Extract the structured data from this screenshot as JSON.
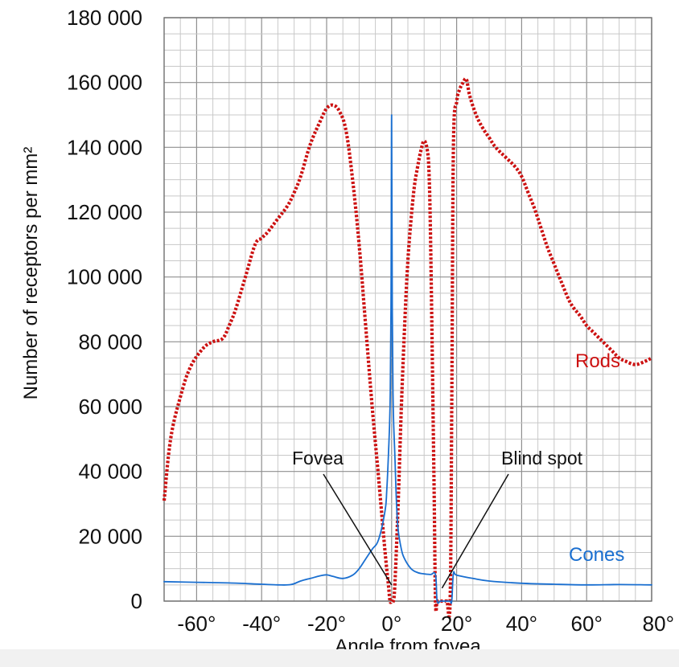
{
  "chart_data": {
    "type": "line",
    "xlabel": "Angle from fovea",
    "ylabel": "Number of receptors per mm²",
    "xlim": [
      -70,
      80
    ],
    "ylim": [
      0,
      180000
    ],
    "x_ticks": [
      -60,
      -40,
      -20,
      0,
      20,
      40,
      60,
      80
    ],
    "x_tick_labels": [
      "-60°",
      "-40°",
      "-20°",
      "0°",
      "20°",
      "40°",
      "60°",
      "80°"
    ],
    "y_ticks": [
      0,
      20000,
      40000,
      60000,
      80000,
      100000,
      120000,
      140000,
      160000,
      180000
    ],
    "y_tick_labels": [
      "0",
      "20 000",
      "40 000",
      "60 000",
      "80 000",
      "100 000",
      "120 000",
      "140 000",
      "160 000",
      "180 000"
    ],
    "grid": true,
    "series": [
      {
        "name": "Rods",
        "color": "#cc1111",
        "style": "dotted",
        "x": [
          -70,
          -68,
          -65,
          -62,
          -58,
          -55,
          -52,
          -50,
          -48,
          -45,
          -42,
          -40,
          -38,
          -35,
          -32,
          -30,
          -28,
          -25,
          -22,
          -20,
          -18,
          -16,
          -14,
          -12,
          -10,
          -8,
          -6,
          -4,
          -2,
          -1,
          -0.5,
          0,
          0.5,
          1,
          2,
          3,
          4,
          5,
          6,
          7,
          8,
          9,
          10,
          11,
          11.5,
          12,
          13,
          13.5,
          14,
          15,
          16,
          17,
          18,
          18.5,
          19,
          20,
          21,
          22,
          23,
          24,
          26,
          28,
          30,
          32,
          35,
          38,
          40,
          42,
          44,
          46,
          48,
          50,
          52,
          55,
          58,
          60,
          62,
          65,
          68,
          70,
          72,
          75,
          78,
          80
        ],
        "y": [
          31000,
          50000,
          63000,
          72000,
          78000,
          80000,
          81000,
          85000,
          90000,
          100000,
          110000,
          112000,
          114000,
          118000,
          122000,
          126000,
          131000,
          141000,
          148000,
          152000,
          153000,
          151000,
          145000,
          130000,
          110000,
          85000,
          60000,
          38000,
          15000,
          5000,
          0,
          0,
          0,
          5000,
          30000,
          60000,
          85000,
          105000,
          118000,
          128000,
          134000,
          139000,
          142000,
          139000,
          132000,
          110000,
          40000,
          0,
          0,
          0,
          0,
          0,
          0,
          60000,
          140000,
          154000,
          158000,
          160000,
          161000,
          156000,
          150000,
          146000,
          143000,
          140000,
          137000,
          134000,
          131000,
          126000,
          121000,
          115000,
          109000,
          104000,
          99000,
          92000,
          88000,
          85000,
          83000,
          80000,
          77000,
          75000,
          74000,
          73000,
          74000,
          75000
        ]
      },
      {
        "name": "Cones",
        "color": "#1a6fd0",
        "style": "solid",
        "x": [
          -70,
          -60,
          -50,
          -40,
          -35,
          -31,
          -28,
          -25,
          -22,
          -20,
          -18,
          -15,
          -12,
          -10,
          -8,
          -6,
          -4,
          -2,
          -1.5,
          -1,
          -0.5,
          -0.2,
          0,
          0.2,
          0.5,
          1,
          1.5,
          2,
          3,
          4,
          6,
          8,
          10,
          12,
          13.5,
          14,
          15,
          16,
          17,
          18,
          18.5,
          19,
          20,
          25,
          30,
          40,
          50,
          60,
          70,
          80
        ],
        "y": [
          6000,
          5800,
          5600,
          5200,
          5000,
          5100,
          6200,
          7000,
          7800,
          8100,
          7600,
          7000,
          8000,
          10000,
          13000,
          16000,
          19000,
          28000,
          34000,
          45000,
          60000,
          90000,
          150000,
          90000,
          60000,
          45000,
          30000,
          22000,
          16000,
          13000,
          10000,
          8800,
          8400,
          8200,
          8100,
          0,
          0,
          0,
          0,
          0,
          0,
          8500,
          8000,
          7000,
          6200,
          5500,
          5200,
          5000,
          5100,
          5000
        ]
      }
    ],
    "annotations": [
      {
        "text": "Fovea",
        "x": 0,
        "y": 0
      },
      {
        "text": "Blind spot",
        "x": 15.5,
        "y": 4000
      }
    ],
    "series_labels": [
      {
        "text": "Rods",
        "color": "#cc1111"
      },
      {
        "text": "Cones",
        "color": "#1a6fd0"
      }
    ]
  }
}
